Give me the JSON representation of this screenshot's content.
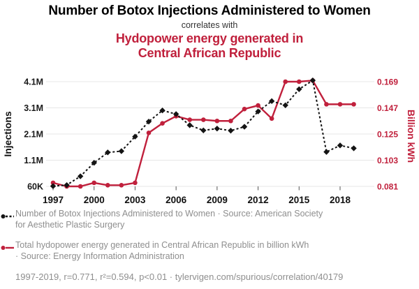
{
  "header": {
    "title": "Number of Botox Injections Administered to Women",
    "subtitle": "correlates with",
    "secondary_title_line1": "Hydopower energy generated in",
    "secondary_title_line2": "Central African Republic"
  },
  "colors": {
    "accent_red": "#c0203c",
    "series_black": "#141414",
    "gridline": "#e7e7e7",
    "legend_gray": "#8e8e8e"
  },
  "chart_data": {
    "type": "line",
    "x": [
      1997,
      1998,
      1999,
      2000,
      2001,
      2002,
      2003,
      2004,
      2005,
      2006,
      2007,
      2008,
      2009,
      2010,
      2011,
      2012,
      2013,
      2014,
      2015,
      2016,
      2017,
      2018,
      2019
    ],
    "x_tick_years": [
      1997,
      2000,
      2003,
      2006,
      2009,
      2012,
      2015,
      2018
    ],
    "series": [
      {
        "name": "Number of Botox Injections Administered to Women",
        "axis": "left",
        "style": "dashed",
        "marker": "diamond",
        "color": "#141414",
        "values_millions": [
          0.07,
          0.11,
          0.45,
          0.97,
          1.37,
          1.42,
          1.98,
          2.56,
          2.99,
          2.85,
          2.42,
          2.22,
          2.29,
          2.21,
          2.36,
          2.95,
          3.35,
          3.19,
          3.81,
          4.15,
          1.39,
          1.64,
          1.53
        ]
      },
      {
        "name": "Total hydopower energy generated in Central African Republic",
        "axis": "right",
        "style": "solid",
        "marker": "circle",
        "color": "#c0203c",
        "values_billion_kwh": [
          0.084,
          0.081,
          0.081,
          0.084,
          0.082,
          0.082,
          0.084,
          0.126,
          0.134,
          0.14,
          0.137,
          0.137,
          0.136,
          0.136,
          0.146,
          0.149,
          0.138,
          0.169,
          0.169,
          0.17,
          0.15,
          0.15,
          0.15
        ]
      }
    ],
    "left_axis": {
      "label": "Injections",
      "tick_labels": [
        "60K",
        "1.1M",
        "2.1M",
        "3.1M",
        "4.1M"
      ],
      "tick_values_millions": [
        0.06,
        1.1,
        2.1,
        3.1,
        4.1
      ],
      "range_millions": [
        0.06,
        4.1
      ]
    },
    "right_axis": {
      "label": "Billion kWh",
      "tick_labels": [
        "0.081",
        "0.103",
        "0.125",
        "0.147",
        "0.169"
      ],
      "tick_values": [
        0.081,
        0.103,
        0.125,
        0.147,
        0.169
      ],
      "range": [
        0.081,
        0.169
      ]
    },
    "grid": true,
    "legend_position": "bottom"
  },
  "legend": {
    "entries": [
      {
        "marker": "black-dashed-diamond",
        "lines": [
          "Number of Botox Injections Administered to Women · Source: American Society",
          "for Aesthetic Plastic Surgery"
        ]
      },
      {
        "marker": "red-solid-circle",
        "lines": [
          "Total hydopower energy generated in Central African Republic in billion kWh",
          "· Source: Energy Information Administration"
        ]
      }
    ],
    "footnote": "1997-2019, r=0.771, r²=0.594, p<0.01 · tylervigen.com/spurious/correlation/40179"
  }
}
